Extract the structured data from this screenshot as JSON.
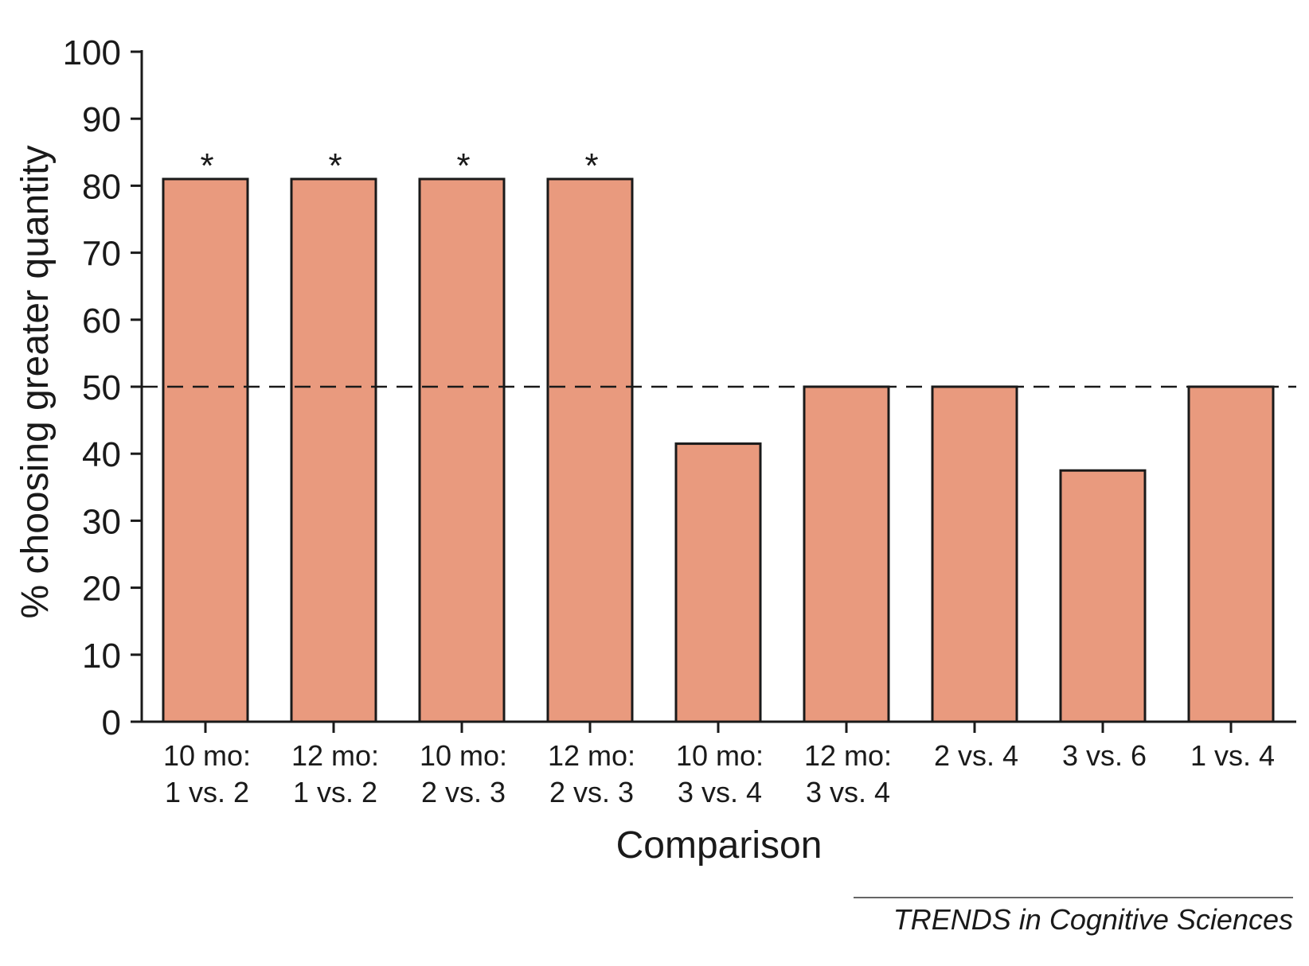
{
  "chart_data": {
    "type": "bar",
    "categories": [
      [
        "10 mo:",
        "1 vs. 2"
      ],
      [
        "12 mo:",
        "1 vs. 2"
      ],
      [
        "10 mo:",
        "2 vs. 3"
      ],
      [
        "12 mo:",
        "2 vs. 3"
      ],
      [
        "10 mo:",
        "3 vs. 4"
      ],
      [
        "12 mo:",
        "3 vs. 4"
      ],
      [
        "2 vs. 4"
      ],
      [
        "3 vs. 6"
      ],
      [
        "1 vs. 4"
      ]
    ],
    "values": [
      81,
      81,
      81,
      81,
      41.5,
      50,
      50,
      37.5,
      50
    ],
    "significance": [
      "*",
      "*",
      "*",
      "*",
      "",
      "",
      "",
      "",
      ""
    ],
    "reference_line": 50,
    "xlabel": "Comparison",
    "ylabel": "% choosing greater quantity",
    "ylim": [
      0,
      100
    ],
    "yticks": [
      0,
      10,
      20,
      30,
      40,
      50,
      60,
      70,
      80,
      90,
      100
    ],
    "bar_color": "#e99a7e",
    "grid": false
  },
  "credit": "TRENDS in Cognitive Sciences"
}
